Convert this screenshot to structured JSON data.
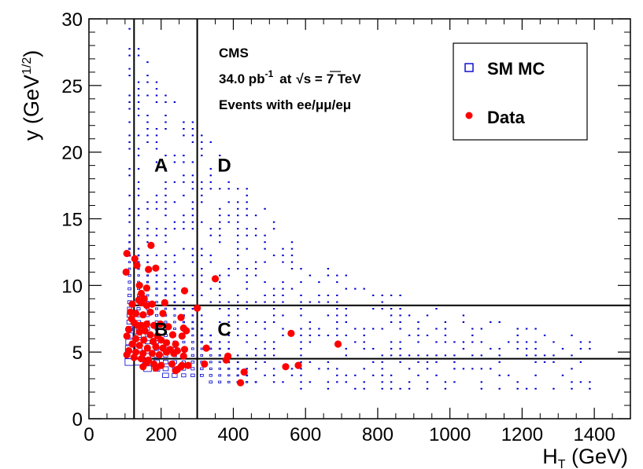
{
  "chart_data": {
    "type": "scatter",
    "xlabel": "H",
    "xlabel_sub": "T",
    "xlabel_unit": " (GeV)",
    "ylabel": "y (GeV",
    "ylabel_sup": "1/2",
    "ylabel_close": ")",
    "xlim": [
      0,
      1500
    ],
    "ylim": [
      0,
      30
    ],
    "xticks": [
      0,
      200,
      400,
      600,
      800,
      1000,
      1200,
      1400
    ],
    "xtick_labels": [
      "0",
      "200",
      "400",
      "600",
      "800",
      "1000",
      "1200",
      "1400"
    ],
    "yticks": [
      0,
      5,
      10,
      15,
      20,
      25,
      30
    ],
    "ytick_labels": [
      "0",
      "5",
      "10",
      "15",
      "20",
      "25",
      "30"
    ],
    "annotations": {
      "experiment": "CMS",
      "lumi_value": "34.0 pb",
      "lumi_sup": "-1",
      "energy_prefix": "at",
      "energy_value": "s = 7 TeV",
      "selection": "Events with ee/μμ/eμ"
    },
    "region_lines": {
      "vertical_HT": [
        125,
        300
      ],
      "horizontal_y": [
        4.5,
        8.5
      ]
    },
    "region_labels": [
      {
        "text": "A",
        "x": 200,
        "y": 19
      },
      {
        "text": "D",
        "x": 375,
        "y": 19
      },
      {
        "text": "B",
        "x": 200,
        "y": 6.7
      },
      {
        "text": "C",
        "x": 375,
        "y": 6.7
      }
    ],
    "legend_position": "top-right",
    "series": [
      {
        "name": "SM MC",
        "color": "#0000cc",
        "marker": "open-square",
        "note": "box-size histogram in 25 GeV x 0.5 GeV^1/2 bins; box size scales with density",
        "density_model": {
          "ht_min": 100,
          "y_min_curve": [
            [
              100,
              4.5
            ],
            [
              125,
              4.0
            ],
            [
              150,
              3.6
            ],
            [
              200,
              3.3
            ],
            [
              250,
              3.0
            ],
            [
              300,
              2.8
            ],
            [
              400,
              2.5
            ],
            [
              600,
              2.2
            ],
            [
              1000,
              2.0
            ],
            [
              1400,
              2.0
            ]
          ],
          "ht_max_range": 1400,
          "y_max_at_ht": [
            [
              100,
              30
            ],
            [
              200,
              25
            ],
            [
              300,
              22
            ],
            [
              450,
              17
            ],
            [
              600,
              12
            ],
            [
              800,
              10
            ],
            [
              1000,
              8
            ],
            [
              1400,
              6
            ]
          ]
        }
      },
      {
        "name": "Data",
        "color": "#ff0000",
        "marker": "filled-circle",
        "points": [
          [
            105,
            12.4
          ],
          [
            103,
            11.0
          ],
          [
            127,
            12.0
          ],
          [
            133,
            11.5
          ],
          [
            172,
            13.0
          ],
          [
            185,
            11.3
          ],
          [
            165,
            11.2
          ],
          [
            350,
            10.5
          ],
          [
            140,
            10.0
          ],
          [
            160,
            9.8
          ],
          [
            145,
            9.4
          ],
          [
            153,
            9.0
          ],
          [
            138,
            8.9
          ],
          [
            145,
            8.7
          ],
          [
            160,
            8.5
          ],
          [
            175,
            8.6
          ],
          [
            210,
            8.7
          ],
          [
            265,
            9.6
          ],
          [
            300,
            8.3
          ],
          [
            120,
            8.6
          ],
          [
            115,
            8.0
          ],
          [
            130,
            7.9
          ],
          [
            150,
            7.8
          ],
          [
            170,
            8.0
          ],
          [
            205,
            7.9
          ],
          [
            255,
            7.6
          ],
          [
            118,
            7.5
          ],
          [
            125,
            7.2
          ],
          [
            135,
            7.0
          ],
          [
            145,
            7.0
          ],
          [
            160,
            7.1
          ],
          [
            180,
            7.0
          ],
          [
            198,
            7.1
          ],
          [
            220,
            6.9
          ],
          [
            262,
            6.8
          ],
          [
            270,
            6.6
          ],
          [
            110,
            6.7
          ],
          [
            140,
            6.5
          ],
          [
            155,
            6.6
          ],
          [
            170,
            6.3
          ],
          [
            190,
            6.2
          ],
          [
            232,
            6.3
          ],
          [
            258,
            6.2
          ],
          [
            105,
            6.2
          ],
          [
            130,
            6.0
          ],
          [
            152,
            5.9
          ],
          [
            178,
            5.8
          ],
          [
            200,
            5.9
          ],
          [
            215,
            5.7
          ],
          [
            240,
            5.6
          ],
          [
            560,
            6.4
          ],
          [
            690,
            5.6
          ],
          [
            120,
            5.6
          ],
          [
            140,
            5.5
          ],
          [
            162,
            5.3
          ],
          [
            185,
            5.4
          ],
          [
            205,
            5.3
          ],
          [
            225,
            5.2
          ],
          [
            245,
            5.1
          ],
          [
            265,
            5.2
          ],
          [
            325,
            5.3
          ],
          [
            110,
            5.1
          ],
          [
            130,
            5.0
          ],
          [
            150,
            4.9
          ],
          [
            175,
            4.9
          ],
          [
            195,
            4.8
          ],
          [
            215,
            5.0
          ],
          [
            235,
            4.9
          ],
          [
            262,
            4.7
          ],
          [
            385,
            4.7
          ],
          [
            105,
            4.8
          ],
          [
            125,
            4.6
          ],
          [
            145,
            4.5
          ],
          [
            165,
            4.4
          ],
          [
            380,
            4.4
          ],
          [
            160,
            4.2
          ],
          [
            180,
            4.1
          ],
          [
            200,
            4.0
          ],
          [
            230,
            4.1
          ],
          [
            258,
            4.0
          ],
          [
            275,
            4.0
          ],
          [
            320,
            4.1
          ],
          [
            150,
            3.9
          ],
          [
            185,
            3.8
          ],
          [
            245,
            3.7
          ],
          [
            255,
            3.9
          ],
          [
            430,
            3.5
          ],
          [
            545,
            3.9
          ],
          [
            580,
            4.0
          ],
          [
            420,
            2.7
          ],
          [
            240,
            3.6
          ]
        ]
      }
    ]
  }
}
